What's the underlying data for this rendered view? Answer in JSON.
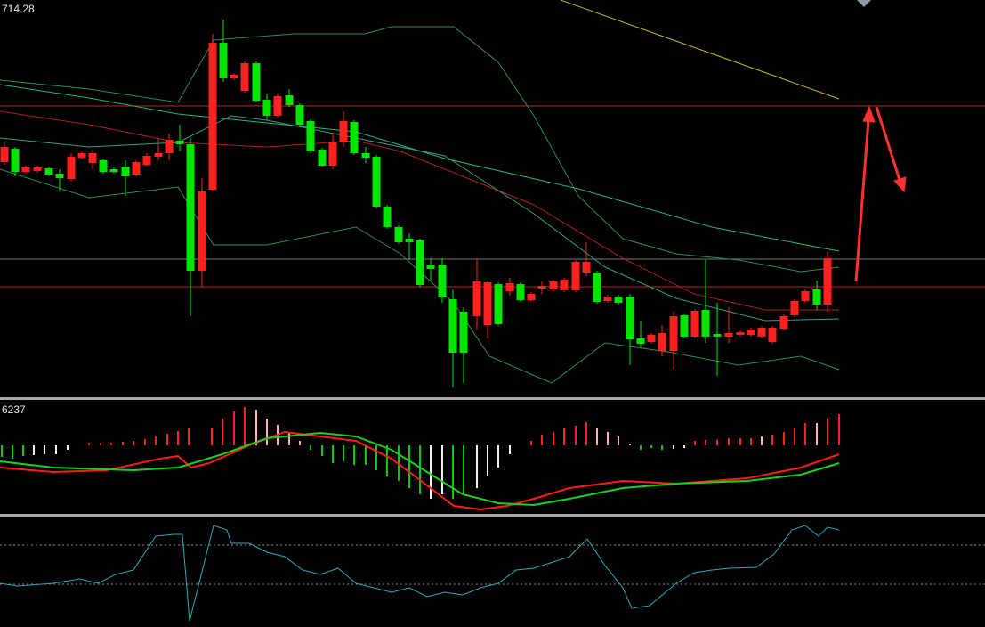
{
  "labels": {
    "price": "714.28",
    "macd": "6237"
  }
}
